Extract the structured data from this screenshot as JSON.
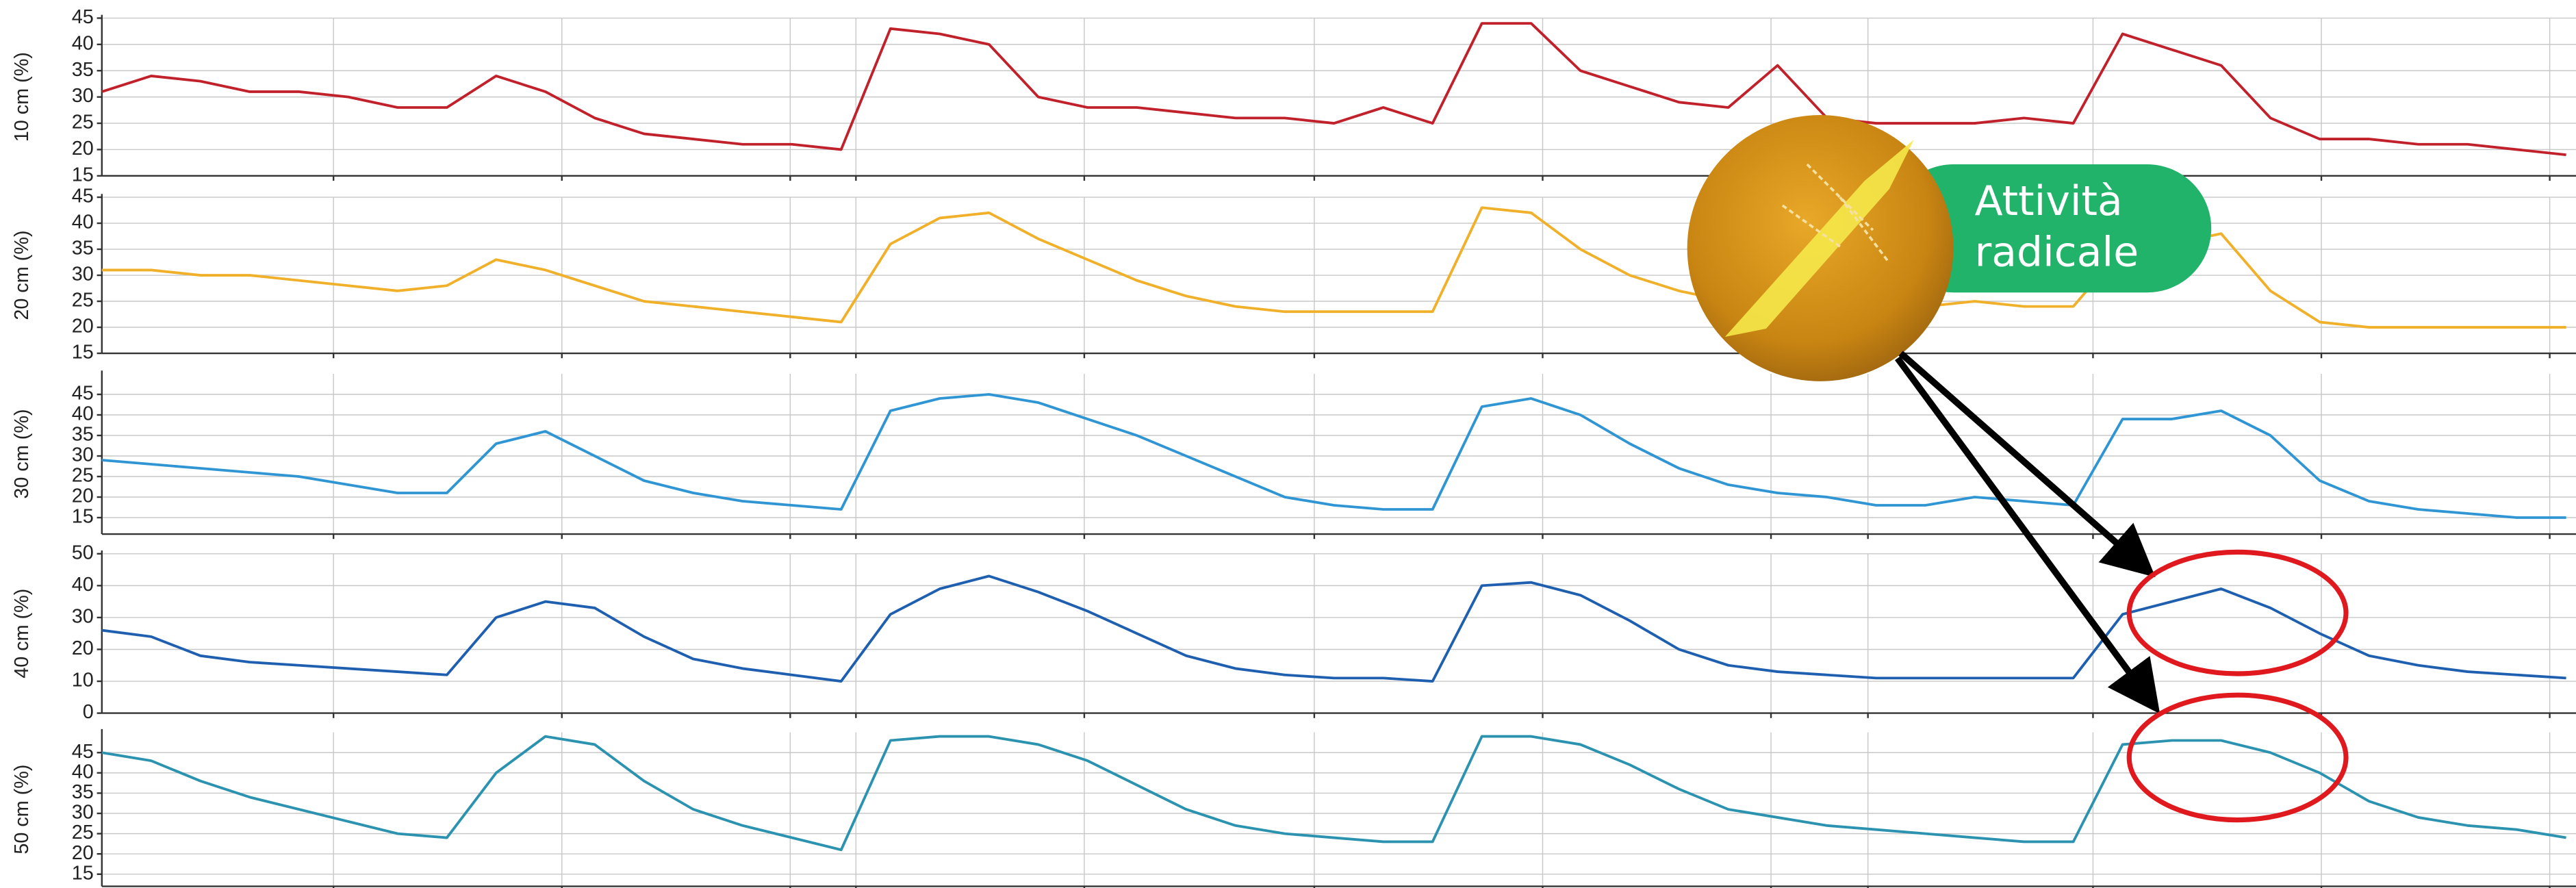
{
  "chart_data": [
    {
      "type": "line",
      "y_label": "10 cm (%)",
      "ylim": [
        15,
        45
      ],
      "yticks": [
        15,
        20,
        25,
        30,
        35,
        40,
        45
      ],
      "grid": true,
      "series": [
        {
          "color": "#c0212a",
          "values": [
            31,
            34,
            33,
            31,
            31,
            30,
            28,
            28,
            34,
            31,
            26,
            23,
            22,
            21,
            21,
            20,
            43,
            42,
            40,
            30,
            28,
            28,
            27,
            26,
            26,
            25,
            28,
            25,
            44,
            44,
            35,
            32,
            29,
            28,
            36,
            26,
            25,
            25,
            25,
            26,
            25,
            42,
            39,
            36,
            26,
            22,
            22,
            21,
            21,
            20,
            19
          ]
        }
      ]
    },
    {
      "type": "line",
      "y_label": "20 cm (%)",
      "ylim": [
        15,
        45
      ],
      "yticks": [
        15,
        20,
        25,
        30,
        35,
        40,
        45
      ],
      "grid": true,
      "series": [
        {
          "color": "#f0b02a",
          "values": [
            31,
            31,
            30,
            30,
            29,
            28,
            27,
            28,
            33,
            31,
            28,
            25,
            24,
            23,
            22,
            21,
            36,
            41,
            42,
            37,
            33,
            29,
            26,
            24,
            23,
            23,
            23,
            23,
            43,
            42,
            35,
            30,
            27,
            25,
            24,
            24,
            24,
            24,
            25,
            24,
            24,
            35,
            36,
            38,
            27,
            21,
            20,
            20,
            20,
            20,
            20
          ]
        }
      ]
    },
    {
      "type": "line",
      "y_label": "30 cm (%)",
      "ylim": [
        11,
        50
      ],
      "yticks": [
        15,
        20,
        25,
        30,
        35,
        40,
        45
      ],
      "grid": true,
      "series": [
        {
          "color": "#2f95d3",
          "values": [
            29,
            28,
            27,
            26,
            25,
            23,
            21,
            21,
            33,
            36,
            30,
            24,
            21,
            19,
            18,
            17,
            41,
            44,
            45,
            43,
            39,
            35,
            30,
            25,
            20,
            18,
            17,
            17,
            42,
            44,
            40,
            33,
            27,
            23,
            21,
            20,
            18,
            18,
            20,
            19,
            18,
            39,
            39,
            41,
            35,
            24,
            19,
            17,
            16,
            15,
            15
          ]
        }
      ]
    },
    {
      "type": "line",
      "y_label": "40 cm (%)",
      "ylim": [
        0,
        50
      ],
      "yticks": [
        0,
        10,
        20,
        30,
        40,
        50
      ],
      "grid": true,
      "series": [
        {
          "color": "#1f5fb0",
          "values": [
            26,
            24,
            18,
            16,
            15,
            14,
            13,
            12,
            30,
            35,
            33,
            24,
            17,
            14,
            12,
            10,
            31,
            39,
            43,
            38,
            32,
            25,
            18,
            14,
            12,
            11,
            11,
            10,
            40,
            41,
            37,
            29,
            20,
            15,
            13,
            12,
            11,
            11,
            11,
            11,
            11,
            31,
            35,
            39,
            33,
            25,
            18,
            15,
            13,
            12,
            11
          ]
        }
      ]
    },
    {
      "type": "line",
      "y_label": "50 cm (%)",
      "ylim": [
        12,
        50
      ],
      "yticks": [
        15,
        20,
        25,
        30,
        35,
        40,
        45
      ],
      "grid": true,
      "series": [
        {
          "color": "#2b93b0",
          "values": [
            45,
            43,
            38,
            34,
            31,
            28,
            25,
            24,
            40,
            49,
            47,
            38,
            31,
            27,
            24,
            21,
            48,
            49,
            49,
            47,
            43,
            37,
            31,
            27,
            25,
            24,
            23,
            23,
            49,
            49,
            47,
            42,
            36,
            31,
            29,
            27,
            26,
            25,
            24,
            23,
            23,
            47,
            48,
            48,
            45,
            40,
            33,
            29,
            27,
            26,
            24
          ]
        }
      ]
    }
  ],
  "annotation": {
    "lines": [
      "Attività",
      "radicale"
    ]
  }
}
